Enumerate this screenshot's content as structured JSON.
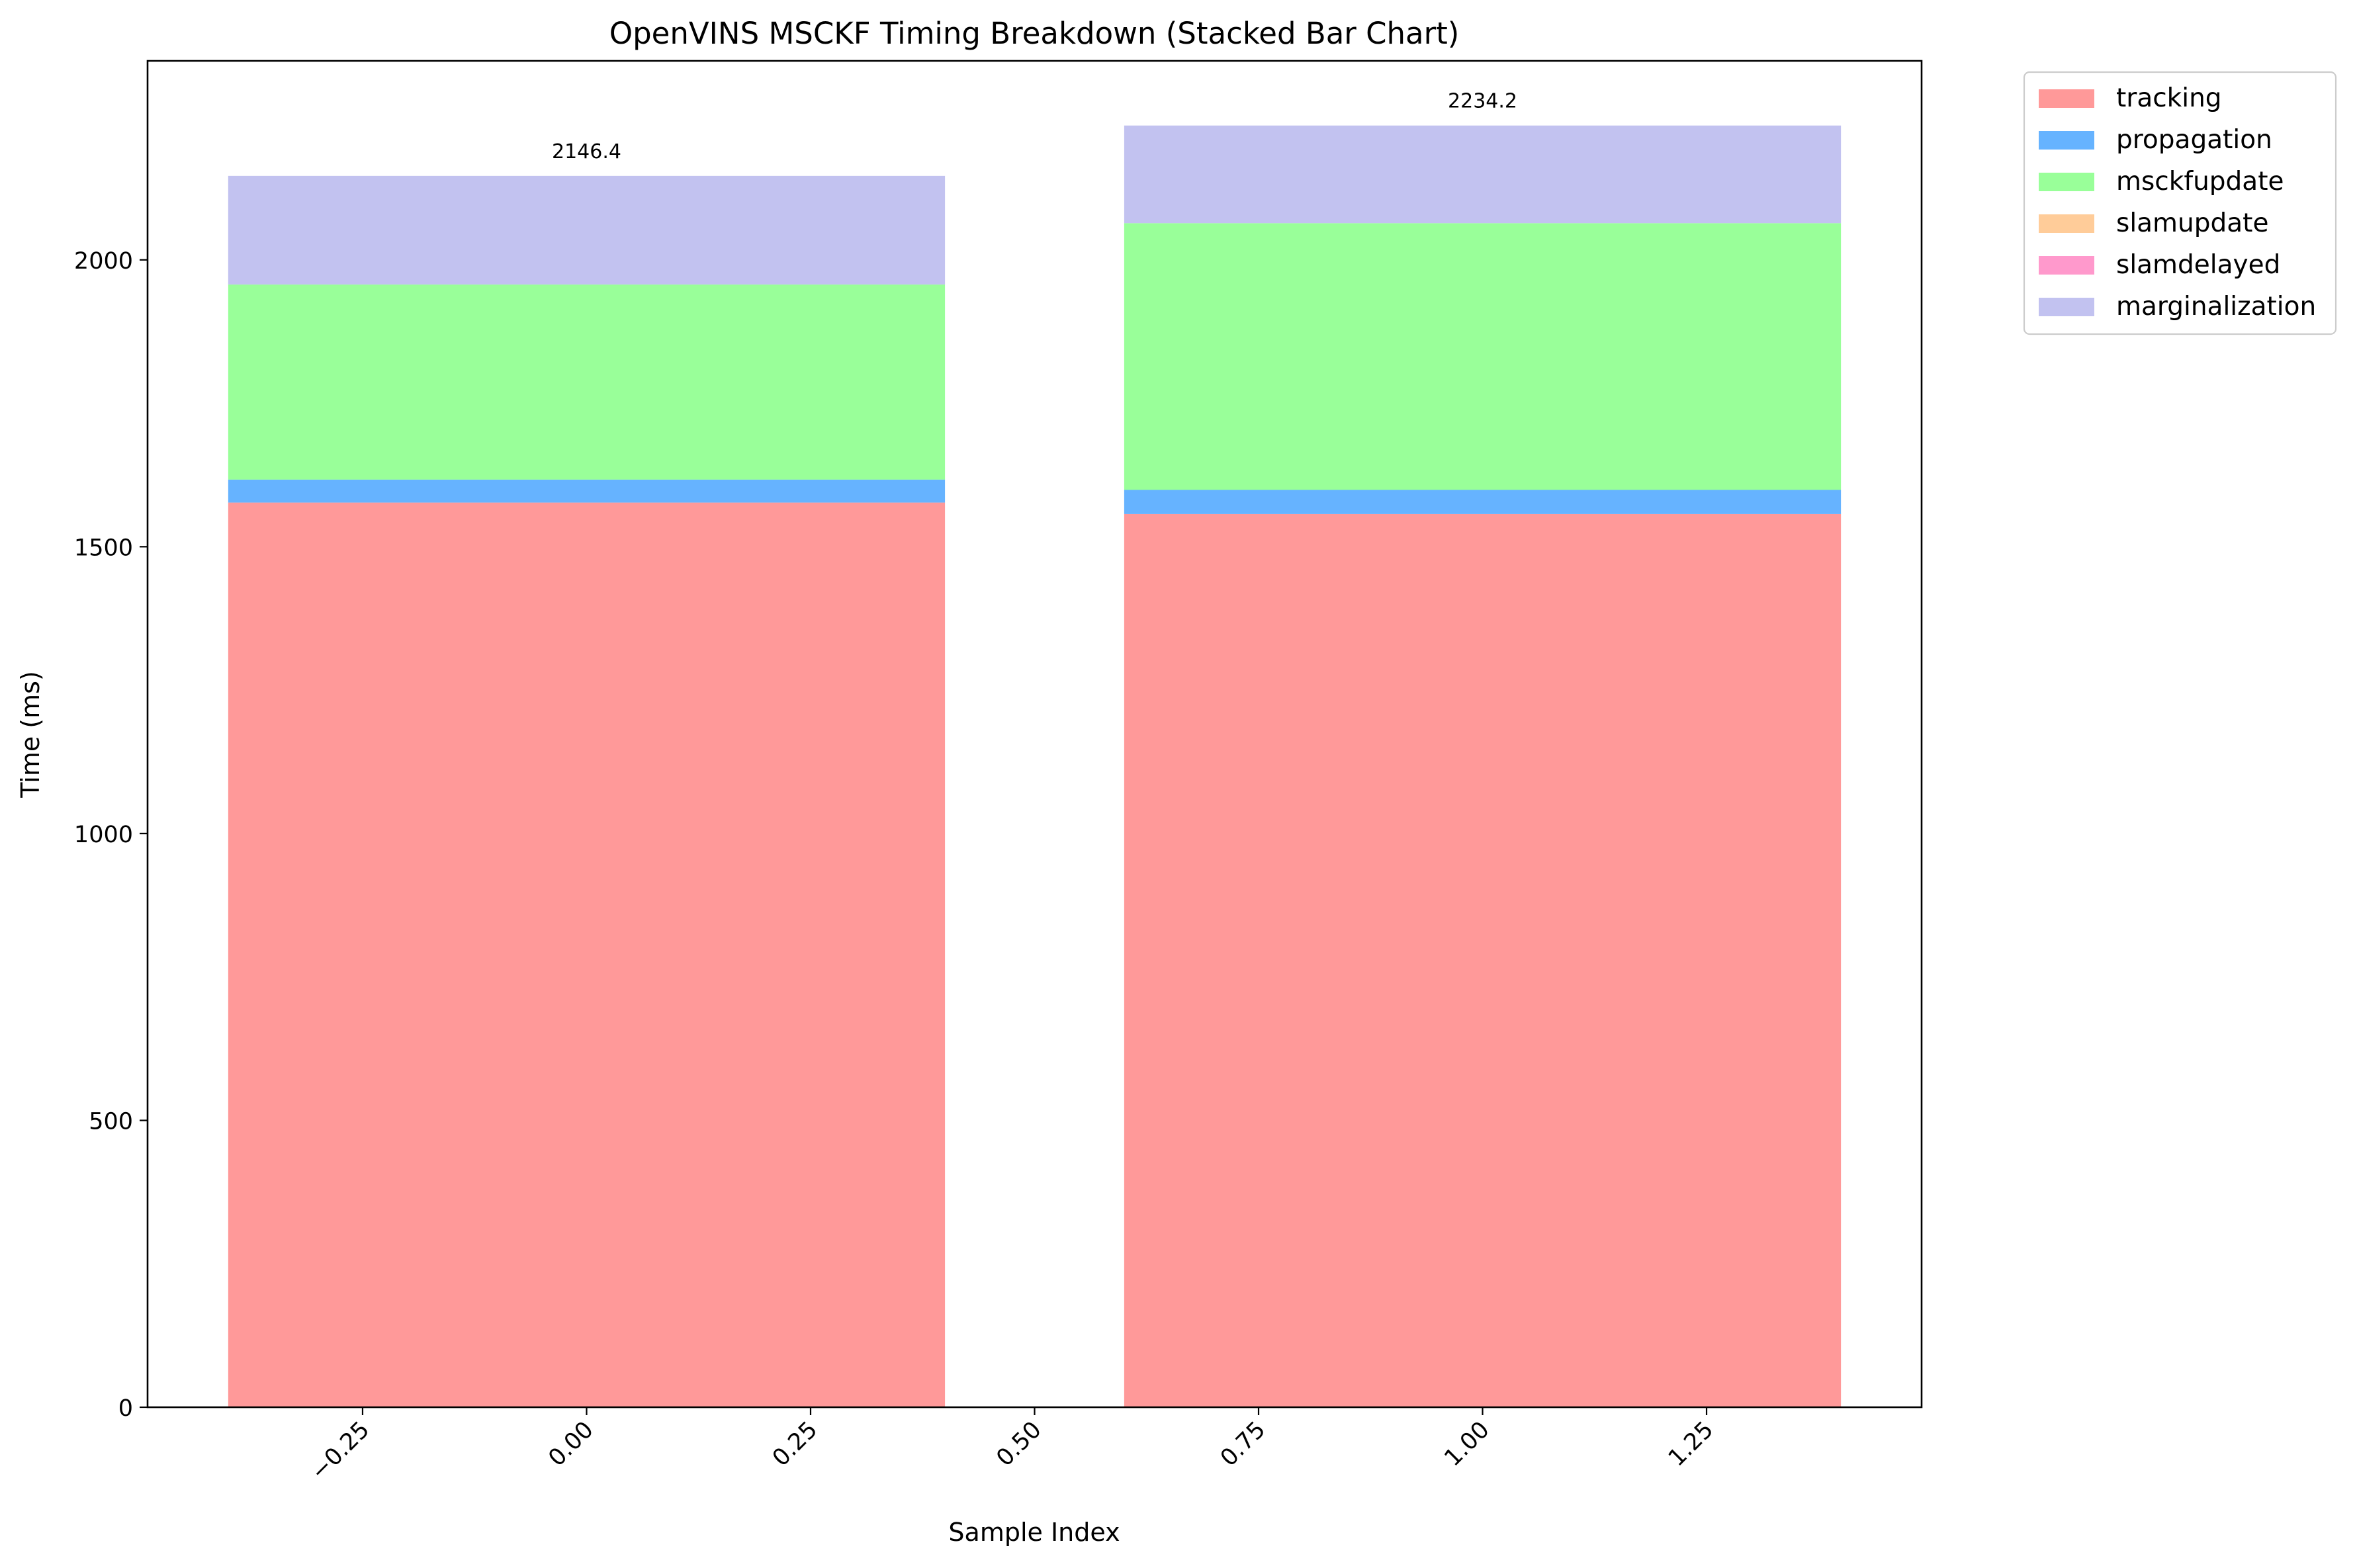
{
  "chart_data": {
    "type": "bar",
    "stacked": true,
    "title": "OpenVINS MSCKF Timing Breakdown (Stacked Bar Chart)",
    "xlabel": "Sample Index",
    "ylabel": "Time (ms)",
    "x": [
      0,
      1
    ],
    "bar_width": 0.8,
    "xlim": [
      -0.49,
      1.49
    ],
    "ylim": [
      0,
      2346.9
    ],
    "xticks": [
      -0.25,
      0.0,
      0.25,
      0.5,
      0.75,
      1.0,
      1.25
    ],
    "xtick_labels": [
      "−0.25",
      "0.00",
      "0.25",
      "0.50",
      "0.75",
      "1.00",
      "1.25"
    ],
    "xtick_rotation": 45,
    "yticks": [
      0,
      500,
      1000,
      1500,
      2000
    ],
    "ytick_labels": [
      "0",
      "500",
      "1000",
      "1500",
      "2000"
    ],
    "grid": false,
    "legend_position": "outside-top-right",
    "series": [
      {
        "name": "tracking",
        "color": "#ff9999",
        "values": [
          1577,
          1557
        ]
      },
      {
        "name": "propagation",
        "color": "#66b3ff",
        "values": [
          40,
          42
        ]
      },
      {
        "name": "msckfupdate",
        "color": "#99ff99",
        "values": [
          340,
          465
        ]
      },
      {
        "name": "slamupdate",
        "color": "#ffcc99",
        "values": [
          0,
          0
        ]
      },
      {
        "name": "slamdelayed",
        "color": "#ff99cc",
        "values": [
          0,
          0
        ]
      },
      {
        "name": "marginalization",
        "color": "#c2c2f0",
        "values": [
          189.4,
          170.2
        ]
      }
    ],
    "totals": [
      2146.4,
      2234.2
    ],
    "total_labels": [
      "2146.4",
      "2234.2"
    ]
  }
}
